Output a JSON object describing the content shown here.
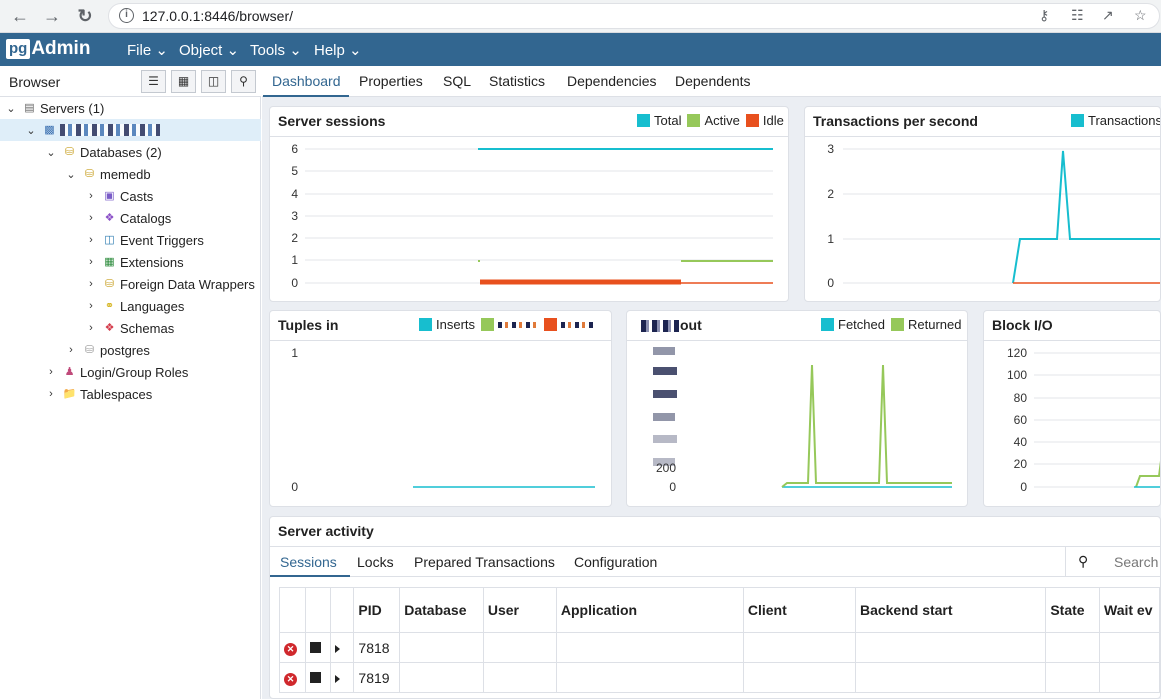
{
  "browser": {
    "url": "127.0.0.1:8446/browser/",
    "back_icon": "arrow-left-icon",
    "forward_icon": "arrow-right-icon",
    "reload_icon": "reload-icon"
  },
  "app": {
    "logo_pg": "pg",
    "logo_admin": "Admin",
    "menu": [
      "File",
      "Object",
      "Tools",
      "Help"
    ]
  },
  "tree": {
    "panel_title": "Browser",
    "items": [
      {
        "label": "Servers (1)",
        "icon": "servers-icon"
      },
      {
        "label": "",
        "icon": "server-icon"
      },
      {
        "label": "Databases (2)",
        "icon": "databases-icon"
      },
      {
        "label": "memedb",
        "icon": "database-icon"
      },
      {
        "label": "Casts",
        "icon": "casts-icon"
      },
      {
        "label": "Catalogs",
        "icon": "catalogs-icon"
      },
      {
        "label": "Event Triggers",
        "icon": "event-triggers-icon"
      },
      {
        "label": "Extensions",
        "icon": "extensions-icon"
      },
      {
        "label": "Foreign Data Wrappers",
        "icon": "fdw-icon"
      },
      {
        "label": "Languages",
        "icon": "languages-icon"
      },
      {
        "label": "Schemas",
        "icon": "schemas-icon"
      },
      {
        "label": "postgres",
        "icon": "database-disconnected-icon"
      },
      {
        "label": "Login/Group Roles",
        "icon": "roles-icon"
      },
      {
        "label": "Tablespaces",
        "icon": "tablespaces-icon"
      }
    ]
  },
  "tabs": [
    "Dashboard",
    "Properties",
    "SQL",
    "Statistics",
    "Dependencies",
    "Dependents"
  ],
  "colors": {
    "total": "#17becf",
    "active": "#96c85a",
    "idle": "#e8501e",
    "brand": "#326690"
  },
  "cards": {
    "sessions": {
      "title": "Server sessions",
      "legend": [
        "Total",
        "Active",
        "Idle"
      ],
      "yticks": [
        "6",
        "5",
        "4",
        "3",
        "2",
        "1",
        "0"
      ]
    },
    "tps": {
      "title": "Transactions per second",
      "legend": [
        "Transactions"
      ],
      "yticks": [
        "3",
        "2",
        "1",
        "0"
      ]
    },
    "tuples_in": {
      "title": "Tuples in",
      "legend": [
        "Inserts"
      ],
      "yticks": [
        "1",
        "0"
      ]
    },
    "tuples_out": {
      "title": "out",
      "legend": [
        "Fetched",
        "Returned"
      ],
      "yticks": [
        "200",
        "0"
      ]
    },
    "block_io": {
      "title": "Block I/O",
      "yticks": [
        "120",
        "100",
        "80",
        "60",
        "40",
        "20",
        "0"
      ]
    }
  },
  "chart_data": [
    {
      "type": "line",
      "title": "Server sessions",
      "ylim": [
        0,
        6
      ],
      "series": [
        {
          "name": "Total",
          "values": [
            6,
            6,
            6,
            6,
            6,
            6,
            6
          ]
        },
        {
          "name": "Active",
          "values": [
            1,
            1,
            1,
            1,
            1,
            1,
            1
          ]
        },
        {
          "name": "Idle",
          "values": [
            0,
            0,
            0,
            0,
            0,
            0,
            0
          ]
        }
      ]
    },
    {
      "type": "line",
      "title": "Transactions per second",
      "ylim": [
        0,
        3
      ],
      "series": [
        {
          "name": "Transactions",
          "values": [
            0,
            1,
            1,
            3,
            1,
            1,
            1,
            1
          ]
        }
      ]
    },
    {
      "type": "line",
      "title": "Tuples in",
      "ylim": [
        0,
        1
      ],
      "series": [
        {
          "name": "Inserts",
          "values": [
            0,
            0,
            0,
            0
          ]
        }
      ]
    },
    {
      "type": "line",
      "title": "Tuples out",
      "series": [
        {
          "name": "Fetched",
          "values": [
            0,
            0,
            0,
            0,
            0
          ]
        },
        {
          "name": "Returned",
          "values": [
            30,
            30,
            1100,
            30,
            1100,
            30
          ]
        }
      ]
    },
    {
      "type": "line",
      "title": "Block I/O",
      "ylim": [
        0,
        120
      ],
      "series": [
        {
          "name": "Block I/O",
          "values": [
            0,
            10,
            10,
            30
          ]
        }
      ]
    }
  ],
  "activity": {
    "title": "Server activity",
    "subtabs": [
      "Sessions",
      "Locks",
      "Prepared Transactions",
      "Configuration"
    ],
    "search_placeholder": "Search",
    "columns": [
      "PID",
      "Database",
      "User",
      "Application",
      "Client",
      "Backend start",
      "State",
      "Wait ev"
    ],
    "rows": [
      {
        "pid": "7818"
      },
      {
        "pid": "7819"
      }
    ]
  }
}
